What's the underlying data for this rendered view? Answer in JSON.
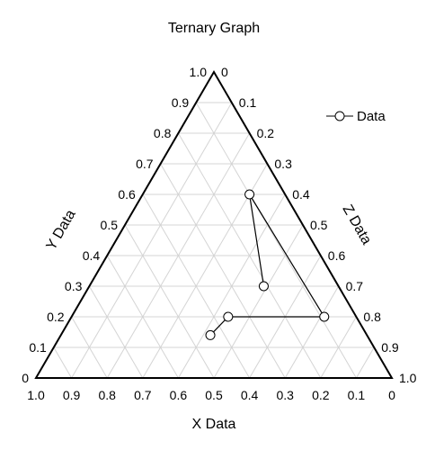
{
  "chart_data": {
    "type": "scatter",
    "subtype": "ternary",
    "title": "Ternary Graph",
    "axes": {
      "x": {
        "label": "X Data",
        "ticks": [
          "1.0",
          "0.9",
          "0.8",
          "0.7",
          "0.6",
          "0.5",
          "0.4",
          "0.3",
          "0.2",
          "0.1",
          "0"
        ]
      },
      "y": {
        "label": "Y Data",
        "ticks": [
          "0",
          "0.1",
          "0.2",
          "0.3",
          "0.4",
          "0.5",
          "0.6",
          "0.7",
          "0.8",
          "0.9",
          "1.0"
        ]
      },
      "z": {
        "label": "Z Data",
        "ticks": [
          "0",
          "0.1",
          "0.2",
          "0.3",
          "0.4",
          "0.5",
          "0.6",
          "0.7",
          "0.8",
          "0.9",
          "1.0"
        ]
      }
    },
    "grid": true,
    "gridlines_per_axis": 10,
    "series": [
      {
        "name": "Data",
        "marker": "open-circle",
        "line": true,
        "points": [
          {
            "x": 0.21,
            "y": 0.3,
            "z": 0.49
          },
          {
            "x": 0.1,
            "y": 0.6,
            "z": 0.3
          },
          {
            "x": 0.09,
            "y": 0.2,
            "z": 0.71
          },
          {
            "x": 0.36,
            "y": 0.2,
            "z": 0.44
          },
          {
            "x": 0.44,
            "y": 0.14,
            "z": 0.42
          }
        ]
      }
    ],
    "legend": {
      "position": "top-right"
    },
    "colors": {
      "frame": "#000000",
      "grid": "#d4d4d4",
      "series": "#000000",
      "marker_fill": "#ffffff"
    }
  }
}
